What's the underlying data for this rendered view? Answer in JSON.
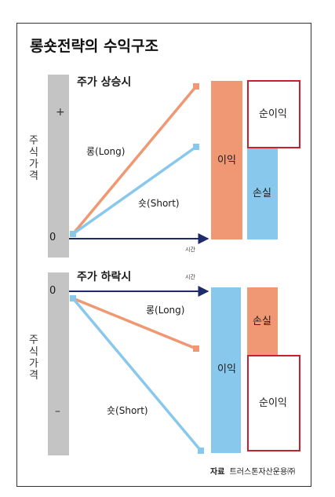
{
  "title": "롱숏전략의 수익구조",
  "colors": {
    "gray_bar": "#c4c4c4",
    "long": "#ef9873",
    "short": "#88c8ec",
    "profit_bar": "#88c8ec",
    "loss_bar": "#ef9873",
    "axis": "#1f2a6b",
    "net_box": "#c8202d"
  },
  "rise": {
    "heading": "주가 상승시",
    "plus_sign": "+",
    "zero_label": "0",
    "y_axis_label": "주식가격",
    "time_label": "시간",
    "long_label": "롱(Long)",
    "short_label": "숏(Short)",
    "profit_label": "이익",
    "net_profit_label": "순이익",
    "loss_label": "손실"
  },
  "fall": {
    "heading": "주가 하락시",
    "zero_label": "0",
    "minus_sign": "–",
    "y_axis_label": "주식가격",
    "time_label": "시간",
    "long_label": "롱(Long)",
    "short_label": "숏(Short)",
    "profit_label": "이익",
    "loss_label": "손실",
    "net_profit_label": "순이익"
  },
  "source": {
    "prefix": "자료",
    "text": "트러스톤자산운용㈜"
  }
}
